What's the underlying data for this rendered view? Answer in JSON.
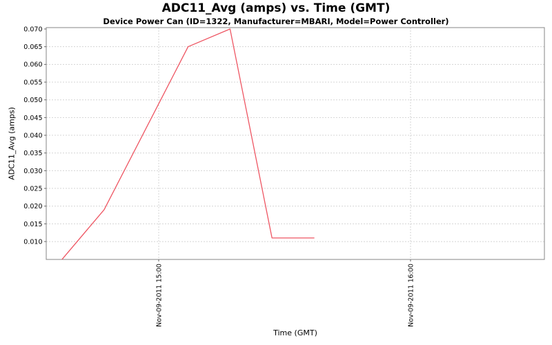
{
  "chart": {
    "title": "ADC11_Avg (amps) vs. Time (GMT)",
    "subtitle": "Device Power Can (ID=1322, Manufacturer=MBARI, Model=Power Controller)"
  },
  "colors": {
    "series_line": "#ee5562",
    "gridline": "#d4d4d4",
    "plot_border": "#848484",
    "tick_mark": "#666666",
    "text": "#000000",
    "background": "#ffffff"
  },
  "chart_data": {
    "type": "line",
    "title": "ADC11_Avg (amps) vs. Time (GMT)",
    "subtitle": "Device Power Can (ID=1322, Manufacturer=MBARI, Model=Power Controller)",
    "xlabel": "Time (GMT)",
    "ylabel": "ADC11_Avg (amps)",
    "grid": "dashed-both-axes",
    "legend": "none",
    "series": [
      {
        "name": "ADC11_Avg",
        "points": [
          {
            "time": "Nov-09-2011 14:37",
            "minutes": 877,
            "value": 0.005
          },
          {
            "time": "Nov-09-2011 14:47",
            "minutes": 887,
            "value": 0.019
          },
          {
            "time": "Nov-09-2011 15:07",
            "minutes": 907,
            "value": 0.065
          },
          {
            "time": "Nov-09-2011 15:17",
            "minutes": 917,
            "value": 0.07
          },
          {
            "time": "Nov-09-2011 15:27",
            "minutes": 927,
            "value": 0.011
          },
          {
            "time": "Nov-09-2011 15:37",
            "minutes": 937,
            "value": 0.011
          }
        ]
      }
    ],
    "x_axis": {
      "min_minutes": 873.2,
      "max_minutes": 991.9,
      "ticks": [
        {
          "minutes": 900,
          "label": "Nov-09-2011 15:00"
        },
        {
          "minutes": 960,
          "label": "Nov-09-2011 16:00"
        }
      ]
    },
    "y_axis": {
      "min": 0.00495,
      "max": 0.07039,
      "ticks": [
        {
          "value": 0.01,
          "label": "0.010"
        },
        {
          "value": 0.015,
          "label": "0.015"
        },
        {
          "value": 0.02,
          "label": "0.020"
        },
        {
          "value": 0.025,
          "label": "0.025"
        },
        {
          "value": 0.03,
          "label": "0.030"
        },
        {
          "value": 0.035,
          "label": "0.035"
        },
        {
          "value": 0.04,
          "label": "0.040"
        },
        {
          "value": 0.045,
          "label": "0.045"
        },
        {
          "value": 0.05,
          "label": "0.050"
        },
        {
          "value": 0.055,
          "label": "0.055"
        },
        {
          "value": 0.06,
          "label": "0.060"
        },
        {
          "value": 0.065,
          "label": "0.065"
        },
        {
          "value": 0.07,
          "label": "0.070"
        }
      ]
    }
  }
}
